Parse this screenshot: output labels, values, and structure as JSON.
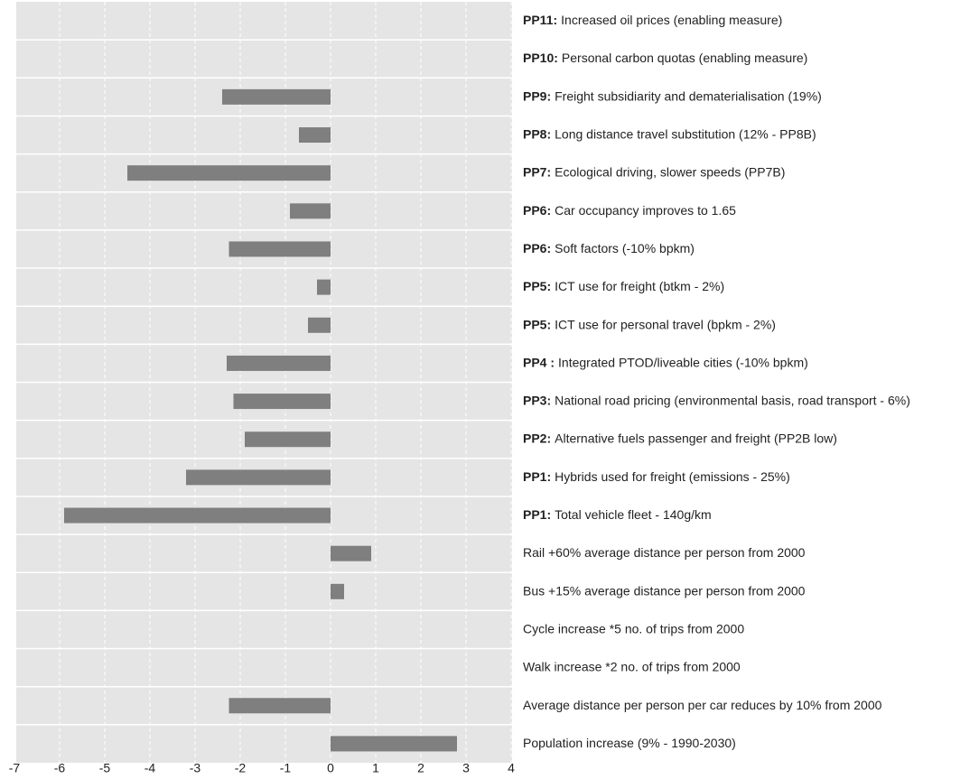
{
  "chart_data": {
    "type": "barh",
    "categories": [
      {
        "bold": "PP11:",
        "text": "Increased oil prices (enabling measure)"
      },
      {
        "bold": "PP10:",
        "text": "Personal carbon quotas (enabling measure)"
      },
      {
        "bold": "PP9:",
        "text": "Freight subsidiarity and dematerialisation (19%)"
      },
      {
        "bold": "PP8:",
        "text": "Long distance travel substitution (12% - PP8B)"
      },
      {
        "bold": "PP7:",
        "text": "Ecological driving, slower speeds (PP7B)"
      },
      {
        "bold": "PP6:",
        "text": "Car occupancy improves to 1.65"
      },
      {
        "bold": "PP6:",
        "text": "Soft factors (-10% bpkm)"
      },
      {
        "bold": "PP5:",
        "text": "ICT use for freight (btkm - 2%)"
      },
      {
        "bold": "PP5:",
        "text": "ICT use for personal travel (bpkm - 2%)"
      },
      {
        "bold": "PP4 :",
        "text": "Integrated PTOD/liveable cities (-10% bpkm)"
      },
      {
        "bold": "PP3:",
        "text": "National road pricing (environmental basis, road transport - 6%)"
      },
      {
        "bold": "PP2:",
        "text": "Alternative fuels passenger and freight (PP2B low)"
      },
      {
        "bold": "PP1:",
        "text": "Hybrids used for freight (emissions - 25%)"
      },
      {
        "bold": "PP1:",
        "text": "Total vehicle fleet - 140g/km"
      },
      {
        "text": "Rail +60% average distance per person from 2000"
      },
      {
        "text": "Bus +15% average distance per person from 2000"
      },
      {
        "text": "Cycle increase *5 no. of trips from 2000"
      },
      {
        "text": "Walk increase *2 no. of trips from 2000"
      },
      {
        "text": "Average distance per person per car reduces by 10% from 2000"
      },
      {
        "text": "Population increase (9% - 1990-2030)"
      }
    ],
    "values": [
      0,
      0,
      -2.4,
      -0.7,
      -4.5,
      -0.9,
      -2.25,
      -0.3,
      -0.5,
      -2.3,
      -2.15,
      -1.9,
      -3.2,
      -5.9,
      0.9,
      0.3,
      0,
      0,
      -2.25,
      2.8
    ],
    "color": "#7f7f7f",
    "xlim": [
      -7,
      4
    ],
    "xticks": [
      -7,
      -6,
      -5,
      -4,
      -3,
      -2,
      -1,
      0,
      1,
      2,
      3,
      4
    ],
    "grid": true
  }
}
